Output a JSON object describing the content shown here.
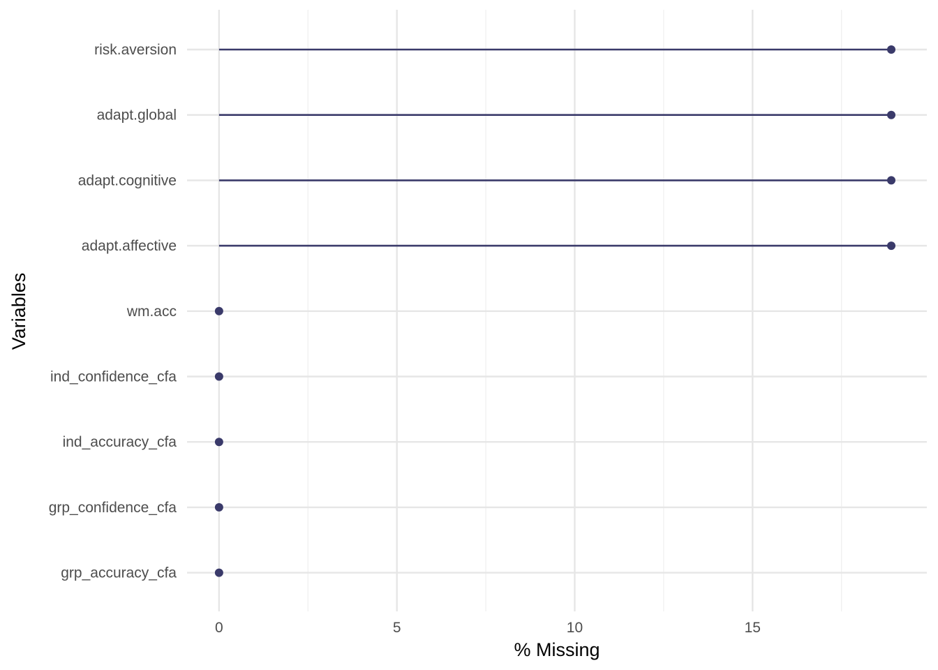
{
  "chart_data": {
    "type": "lollipop",
    "title": "",
    "xlabel": "% Missing",
    "ylabel": "Variables",
    "xlim": [
      -0.9,
      19.9
    ],
    "x_ticks": [
      0,
      5,
      10,
      15
    ],
    "x_tick_labels": [
      "0",
      "5",
      "10",
      "15"
    ],
    "grid": true,
    "colors": {
      "mark": "#3a3a6a",
      "grid_major": "#e6e6e6",
      "grid_minor": "#f0f0f0"
    },
    "categories": [
      "risk.aversion",
      "adapt.global",
      "adapt.cognitive",
      "adapt.affective",
      "wm.acc",
      "ind_confidence_cfa",
      "ind_accuracy_cfa",
      "grp_confidence_cfa",
      "grp_accuracy_cfa"
    ],
    "values": [
      18.9,
      18.9,
      18.9,
      18.9,
      0,
      0,
      0,
      0,
      0
    ]
  }
}
